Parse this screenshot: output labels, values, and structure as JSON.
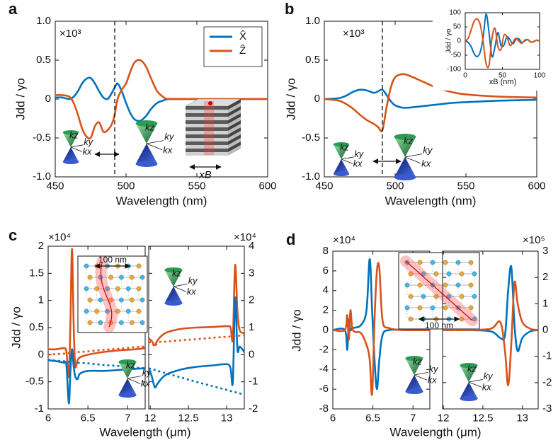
{
  "chart_data": [
    {
      "type": "line",
      "panel": "a",
      "multiplier": "×10³",
      "xlabel": "Wavelength (nm)",
      "ylabel": "Jdd / γo",
      "xlim": [
        450,
        600
      ],
      "ylim": [
        -1,
        1
      ],
      "xticks": [
        450,
        500,
        550,
        600
      ],
      "yticks": [
        {
          "value": -1,
          "label": "-1.0"
        },
        -0.5,
        0,
        0.5,
        {
          "value": 1,
          "label": "1.0"
        }
      ],
      "marker_line_x": 492,
      "legend": "top-right",
      "x": [
        450,
        455,
        460,
        463,
        466,
        469,
        472,
        475,
        478,
        481,
        484,
        487,
        490,
        492,
        494,
        497,
        500,
        503,
        506,
        510,
        514,
        518,
        522,
        526,
        530,
        540,
        550,
        575,
        600
      ],
      "series": [
        {
          "name": "X̂",
          "color": "#0072bd",
          "values": [
            0.02,
            0.02,
            0.0,
            0.03,
            0.1,
            0.2,
            0.26,
            0.27,
            0.2,
            0.1,
            0.02,
            0.0,
            0.08,
            0.15,
            0.2,
            0.1,
            -0.05,
            -0.18,
            -0.26,
            -0.28,
            -0.22,
            -0.12,
            -0.05,
            -0.02,
            0,
            0,
            0,
            0,
            0
          ]
        },
        {
          "name": "Ẑ",
          "color": "#d95319",
          "values": [
            0.05,
            0.05,
            0.03,
            -0.05,
            -0.2,
            -0.38,
            -0.48,
            -0.5,
            -0.35,
            -0.3,
            -0.42,
            -0.4,
            -0.32,
            -0.2,
            0.0,
            0.12,
            0.2,
            0.35,
            0.47,
            0.5,
            0.42,
            0.25,
            0.1,
            0.03,
            0,
            0,
            0,
            0,
            0
          ]
        }
      ]
    },
    {
      "type": "line",
      "panel": "b",
      "multiplier": "×10³",
      "xlabel": "Wavelength (nm)",
      "ylabel": "Jdd / γo",
      "xlim": [
        450,
        600
      ],
      "ylim": [
        -1,
        1
      ],
      "xticks": [
        450,
        500,
        550,
        600
      ],
      "yticks": [
        {
          "value": -1,
          "label": "-1.0"
        },
        -0.5,
        0,
        0.5,
        {
          "value": 1,
          "label": "1.0"
        }
      ],
      "marker_line_x": 491,
      "x": [
        450,
        460,
        465,
        470,
        475,
        480,
        485,
        488,
        491,
        494,
        497,
        500,
        505,
        510,
        520,
        530,
        540,
        550,
        575,
        600
      ],
      "series": [
        {
          "color": "#0072bd",
          "values": [
            0,
            0.01,
            0.04,
            0.09,
            0.12,
            0.11,
            0.08,
            0.1,
            0.12,
            0.05,
            -0.03,
            -0.08,
            -0.11,
            -0.11,
            -0.09,
            -0.07,
            -0.05,
            -0.04,
            -0.02,
            -0.01
          ]
        },
        {
          "color": "#d95319",
          "values": [
            0,
            -0.02,
            -0.06,
            -0.12,
            -0.2,
            -0.27,
            -0.32,
            -0.36,
            -0.4,
            -0.1,
            0.15,
            0.28,
            0.32,
            0.3,
            0.22,
            0.14,
            0.09,
            0.06,
            0.03,
            0.02
          ]
        }
      ]
    },
    {
      "type": "line",
      "inset": true,
      "xlabel": "xB (nm)",
      "ylabel": "Jdd / γo",
      "xlim": [
        0,
        100
      ],
      "ylim": [
        -100,
        100
      ],
      "xticks": [
        0,
        50,
        100
      ],
      "yticks": [
        -100,
        -50,
        0,
        50,
        100
      ],
      "x": [
        0,
        4,
        8,
        12,
        16,
        20,
        24,
        28,
        32,
        36,
        40,
        44,
        48,
        52,
        56,
        60,
        64,
        68,
        72,
        76,
        80,
        84,
        88,
        92,
        96,
        100
      ],
      "series": [
        {
          "color": "#0072bd",
          "values": [
            0,
            -5,
            -20,
            -45,
            -55,
            -40,
            10,
            95,
            30,
            -55,
            -20,
            30,
            -15,
            -15,
            15,
            5,
            -10,
            5,
            8,
            -5,
            0,
            5,
            -3,
            -2,
            3,
            0
          ]
        },
        {
          "color": "#d95319",
          "values": [
            0,
            10,
            40,
            70,
            78,
            60,
            0,
            -80,
            -85,
            10,
            45,
            -20,
            -30,
            20,
            15,
            -15,
            -5,
            10,
            0,
            -8,
            3,
            5,
            -4,
            -2,
            3,
            0
          ]
        }
      ]
    },
    {
      "type": "line",
      "panel": "c",
      "multiplier": "×10⁴",
      "xlabel": "Wavelength (μm)",
      "ylabel": "Jdd / γo",
      "xlim": [
        6,
        7.22
      ],
      "ylim": [
        -1,
        2
      ],
      "xticks": [
        6,
        6.5,
        7
      ],
      "yticks": [
        -1,
        -0.5,
        0,
        0.5,
        1,
        1.5,
        2
      ],
      "x": [
        6,
        6.1,
        6.2,
        6.23,
        6.26,
        6.28,
        6.3,
        6.32,
        6.34,
        6.37,
        6.4,
        6.5,
        6.7,
        6.9,
        7.1,
        7.22
      ],
      "series": [
        {
          "color": "#d95319",
          "values": [
            0.1,
            0.1,
            0.12,
            0.05,
            -0.4,
            0.6,
            1.95,
            0.6,
            -0.2,
            -0.1,
            -0.05,
            0.0,
            0.05,
            0.08,
            0.1,
            0.12
          ]
        },
        {
          "color": "#0072bd",
          "values": [
            -0.1,
            -0.12,
            -0.15,
            -0.2,
            -0.9,
            -0.3,
            0.1,
            -0.2,
            -0.4,
            -0.45,
            -0.35,
            -0.3,
            -0.3,
            -0.28,
            -0.26,
            -0.25
          ]
        },
        {
          "color": "#d95319",
          "style": "dotted",
          "values": [
            0.0,
            0.01,
            0.02,
            0.03,
            0.03,
            0.03,
            0.04,
            0.04,
            0.04,
            0.05,
            0.05,
            0.06,
            0.09,
            0.11,
            0.14,
            0.15
          ]
        },
        {
          "color": "#0072bd",
          "style": "dotted",
          "values": [
            -0.1,
            -0.11,
            -0.12,
            -0.13,
            -0.13,
            -0.13,
            -0.14,
            -0.14,
            -0.14,
            -0.15,
            -0.15,
            -0.16,
            -0.19,
            -0.21,
            -0.24,
            -0.25
          ]
        }
      ]
    },
    {
      "type": "line",
      "multiplier": "×10⁴",
      "y_axis": "right",
      "xlim": [
        11.98,
        13.23
      ],
      "ylim": [
        -2,
        4
      ],
      "xticks": [
        12,
        12.5,
        13
      ],
      "yticks": [
        -2,
        -1,
        0,
        1,
        2,
        3,
        4
      ],
      "x": [
        11.98,
        12.02,
        12.06,
        12.1,
        12.2,
        12.4,
        12.6,
        12.8,
        13.0,
        13.05,
        13.08,
        13.11,
        13.14,
        13.17,
        13.23
      ],
      "series": [
        {
          "color": "#d95319",
          "values": [
            0.6,
            0.5,
            0.35,
            0.55,
            0.8,
            0.95,
            1.0,
            1.02,
            1.05,
            1.0,
            0.6,
            3.3,
            1.6,
            0.9,
            0.8
          ]
        },
        {
          "color": "#0072bd",
          "values": [
            -0.5,
            -0.8,
            -1.2,
            -1.05,
            -0.75,
            -0.55,
            -0.45,
            -0.4,
            -0.35,
            -0.5,
            -1.0,
            2.1,
            0.2,
            0.3,
            0.1
          ]
        },
        {
          "color": "#d95319",
          "style": "dotted",
          "values": [
            0.45,
            0.45,
            0.3,
            0.45,
            0.48,
            0.53,
            0.57,
            0.62,
            0.66,
            0.67,
            0.68,
            0.69,
            0.7,
            0.7,
            0.72
          ]
        },
        {
          "color": "#0072bd",
          "style": "dotted",
          "values": [
            -0.5,
            -0.53,
            -0.56,
            -0.6,
            -0.68,
            -0.84,
            -1.0,
            -1.15,
            -1.3,
            -1.34,
            -1.36,
            -1.38,
            -1.41,
            -1.43,
            -1.48
          ]
        }
      ]
    },
    {
      "type": "line",
      "panel": "d",
      "multiplier": "×10⁴",
      "xlabel": "Wavelength (μm)",
      "ylabel": "Jdd / γo",
      "xlim": [
        6,
        7.21
      ],
      "ylim": [
        -8,
        8
      ],
      "xticks": [
        6,
        6.5,
        7
      ],
      "yticks": [
        -8,
        -6,
        -4,
        -2,
        0,
        2,
        4,
        6,
        8
      ],
      "x": [
        6,
        6.15,
        6.18,
        6.2,
        6.22,
        6.25,
        6.35,
        6.42,
        6.46,
        6.49,
        6.52,
        6.55,
        6.58,
        6.62,
        6.7,
        6.9,
        7.21
      ],
      "series": [
        {
          "color": "#0072bd",
          "values": [
            0,
            0,
            -2,
            1,
            0,
            0.2,
            0.5,
            2,
            7.2,
            2,
            -3,
            -6,
            -3,
            -0.5,
            0,
            0,
            0
          ]
        },
        {
          "color": "#d95319",
          "values": [
            0,
            0,
            1.5,
            -1,
            2,
            0,
            -0.3,
            -1.5,
            -3,
            -6.5,
            1,
            6,
            6.3,
            1,
            0.2,
            0,
            0
          ]
        }
      ]
    },
    {
      "type": "line",
      "multiplier": "×10⁵",
      "y_axis": "right",
      "xlim": [
        11.99,
        13.2
      ],
      "ylim": [
        -3,
        3
      ],
      "xticks": [
        12,
        12.5,
        13
      ],
      "yticks": [
        -3,
        -2,
        -1,
        0,
        1,
        2,
        3
      ],
      "x": [
        11.99,
        12.3,
        12.6,
        12.72,
        12.78,
        12.82,
        12.86,
        12.9,
        12.94,
        13.0,
        13.1,
        13.2
      ],
      "series": [
        {
          "color": "#0072bd",
          "values": [
            0,
            0,
            -0.05,
            -0.3,
            -0.2,
            1.5,
            2.4,
            0.2,
            -0.8,
            -0.3,
            -0.05,
            0
          ]
        },
        {
          "color": "#d95319",
          "values": [
            0,
            0,
            0.05,
            0.3,
            -0.8,
            -2.1,
            -0.5,
            1.8,
            1.0,
            0.3,
            0.05,
            0
          ]
        }
      ]
    }
  ],
  "annotations": {
    "cone_labels": [
      "kz",
      "ky",
      "kx"
    ],
    "scale_bar": "100 nm",
    "stack_label": "xB"
  }
}
